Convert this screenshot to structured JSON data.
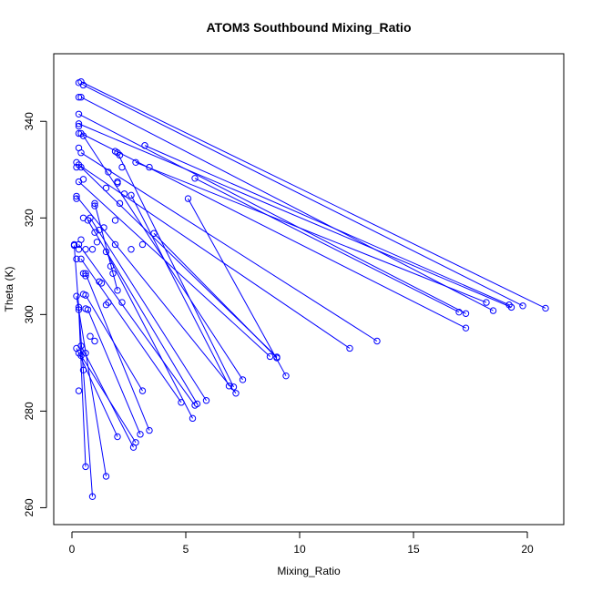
{
  "chart_data": {
    "type": "scatter",
    "title": "ATOM3 Southbound Mixing_Ratio",
    "xlabel": "Mixing_Ratio",
    "ylabel": "Theta (K)",
    "xlim": [
      -0.8,
      21.6
    ],
    "ylim": [
      256.5,
      354
    ],
    "xticks": [
      0,
      5,
      10,
      15,
      20
    ],
    "yticks": [
      260,
      280,
      300,
      320,
      340
    ],
    "grid": false,
    "legend": "none",
    "series_color": "#0000ff",
    "marker": "open-circle",
    "connected_segments": [
      [
        [
          0.5,
          347.5
        ],
        [
          19.8,
          301.8
        ]
      ],
      [
        [
          0.4,
          348.2
        ],
        [
          20.8,
          301.3
        ]
      ],
      [
        [
          0.4,
          345
        ],
        [
          18.5,
          300.8
        ]
      ],
      [
        [
          0.3,
          341.5
        ],
        [
          17.3,
          300.2
        ]
      ],
      [
        [
          0.3,
          339.5
        ],
        [
          19.3,
          301.5
        ]
      ],
      [
        [
          0.4,
          337.5
        ],
        [
          17.3,
          297.2
        ]
      ],
      [
        [
          0.4,
          333.5
        ],
        [
          13.4,
          294.5
        ]
      ],
      [
        [
          0.3,
          331
        ],
        [
          12.2,
          293
        ]
      ],
      [
        [
          3.2,
          335
        ],
        [
          19.2,
          302
        ]
      ],
      [
        [
          2.8,
          331.5
        ],
        [
          18.2,
          302.5
        ]
      ],
      [
        [
          5.4,
          328.2
        ],
        [
          17.0,
          300.5
        ]
      ],
      [
        [
          5.1,
          324
        ],
        [
          9.4,
          287.3
        ]
      ],
      [
        [
          0.4,
          330.5
        ],
        [
          9.0,
          291.2
        ]
      ],
      [
        [
          0.3,
          327.5
        ],
        [
          8.7,
          291.3
        ]
      ],
      [
        [
          2.6,
          324.7
        ],
        [
          6.9,
          285.2
        ]
      ],
      [
        [
          0.5,
          337
        ],
        [
          7.5,
          286.5
        ]
      ],
      [
        [
          0.2,
          324.5
        ],
        [
          7.2,
          283.7
        ]
      ],
      [
        [
          2.0,
          333.5
        ],
        [
          7.1,
          285
        ]
      ],
      [
        [
          0.8,
          320
        ],
        [
          5.9,
          282.2
        ]
      ],
      [
        [
          0.7,
          319.5
        ],
        [
          5.5,
          281.5
        ]
      ],
      [
        [
          0.3,
          314.5
        ],
        [
          5.4,
          281.2
        ]
      ],
      [
        [
          1.5,
          313
        ],
        [
          5.3,
          278.5
        ]
      ],
      [
        [
          0.4,
          311.5
        ],
        [
          4.8,
          281.8
        ]
      ],
      [
        [
          0.6,
          308.5
        ],
        [
          3.4,
          276
        ]
      ],
      [
        [
          0.6,
          304
        ],
        [
          3.1,
          284.2
        ]
      ],
      [
        [
          0.7,
          301
        ],
        [
          3.0,
          275.2
        ]
      ],
      [
        [
          0.4,
          293.5
        ],
        [
          2.7,
          272.5
        ]
      ],
      [
        [
          0.4,
          291.5
        ],
        [
          2.8,
          273.5
        ]
      ],
      [
        [
          0.2,
          293
        ],
        [
          2.0,
          274.7
        ]
      ],
      [
        [
          0.2,
          303.8
        ],
        [
          1.5,
          266.5
        ]
      ],
      [
        [
          0.1,
          314.3
        ],
        [
          0.9,
          262.3
        ]
      ],
      [
        [
          0.3,
          301
        ],
        [
          0.6,
          268.5
        ]
      ],
      [
        [
          3.6,
          316.8
        ],
        [
          9.0,
          291
        ]
      ],
      [
        [
          1.0,
          323
        ],
        [
          2.0,
          305
        ]
      ]
    ],
    "scattered_points": [
      [
        0.3,
        348
      ],
      [
        0.3,
        345
      ],
      [
        0.3,
        339
      ],
      [
        0.3,
        337.5
      ],
      [
        0.3,
        334.5
      ],
      [
        0.4,
        333.5
      ],
      [
        0.2,
        331.5
      ],
      [
        0.2,
        330.5
      ],
      [
        0.5,
        328
      ],
      [
        0.2,
        324.5
      ],
      [
        0.2,
        324
      ],
      [
        0.5,
        320
      ],
      [
        0.7,
        319.5
      ],
      [
        1.0,
        322.5
      ],
      [
        0.1,
        314.5
      ],
      [
        0.3,
        313.5
      ],
      [
        0.6,
        313.5
      ],
      [
        0.9,
        313.5
      ],
      [
        0.4,
        315.5
      ],
      [
        0.2,
        311.5
      ],
      [
        0.5,
        308.5
      ],
      [
        0.6,
        308
      ],
      [
        0.2,
        303.8
      ],
      [
        0.5,
        304.2
      ],
      [
        0.3,
        301.5
      ],
      [
        0.6,
        301.2
      ],
      [
        0.7,
        301
      ],
      [
        0.4,
        293.5
      ],
      [
        0.3,
        292
      ],
      [
        0.6,
        292
      ],
      [
        0.2,
        293
      ],
      [
        0.5,
        288.5
      ],
      [
        0.3,
        284.2
      ],
      [
        0.8,
        295.5
      ],
      [
        1.0,
        294.5
      ],
      [
        0.6,
        268.5
      ],
      [
        0.9,
        262.3
      ],
      [
        1.5,
        266.5
      ],
      [
        2.0,
        274.7
      ],
      [
        2.7,
        272.5
      ],
      [
        2.8,
        273.5
      ],
      [
        3.1,
        284.2
      ],
      [
        3.0,
        275.2
      ],
      [
        3.4,
        276
      ],
      [
        4.8,
        281.8
      ],
      [
        5.3,
        278.5
      ],
      [
        5.4,
        281.2
      ],
      [
        5.5,
        281.5
      ],
      [
        5.9,
        282.2
      ],
      [
        6.9,
        285.2
      ],
      [
        7.1,
        285
      ],
      [
        7.2,
        283.7
      ],
      [
        7.5,
        286.5
      ],
      [
        8.7,
        291.3
      ],
      [
        9.0,
        291.2
      ],
      [
        9.0,
        291
      ],
      [
        9.4,
        287.3
      ],
      [
        12.2,
        293
      ],
      [
        13.4,
        294.5
      ],
      [
        17.3,
        297.2
      ],
      [
        17.3,
        300.2
      ],
      [
        18.5,
        300.8
      ],
      [
        19.3,
        301.5
      ],
      [
        19.2,
        302
      ],
      [
        19.8,
        301.8
      ],
      [
        20.8,
        301.3
      ],
      [
        1.2,
        306.8
      ],
      [
        1.3,
        306.5
      ],
      [
        1.5,
        302
      ],
      [
        1.6,
        302.5
      ],
      [
        1.7,
        310
      ],
      [
        1.8,
        308.5
      ],
      [
        1.4,
        318
      ],
      [
        1.2,
        317.5
      ],
      [
        1.1,
        315
      ],
      [
        1.0,
        317
      ],
      [
        1.9,
        314.5
      ],
      [
        2.2,
        302.5
      ],
      [
        2.6,
        313.5
      ],
      [
        3.1,
        314.5
      ],
      [
        3.6,
        316.8
      ],
      [
        1.9,
        319.5
      ],
      [
        2.1,
        323
      ],
      [
        1.5,
        326.2
      ],
      [
        1.6,
        329.5
      ],
      [
        2.0,
        327.5
      ],
      [
        2.2,
        330.5
      ],
      [
        2.3,
        325
      ],
      [
        2.6,
        324.7
      ],
      [
        2.8,
        331.5
      ],
      [
        3.2,
        335
      ],
      [
        3.4,
        330.5
      ],
      [
        5.1,
        324
      ],
      [
        5.4,
        328.2
      ],
      [
        1.9,
        333.8
      ],
      [
        2.1,
        333
      ],
      [
        2.0,
        327.2
      ]
    ]
  }
}
